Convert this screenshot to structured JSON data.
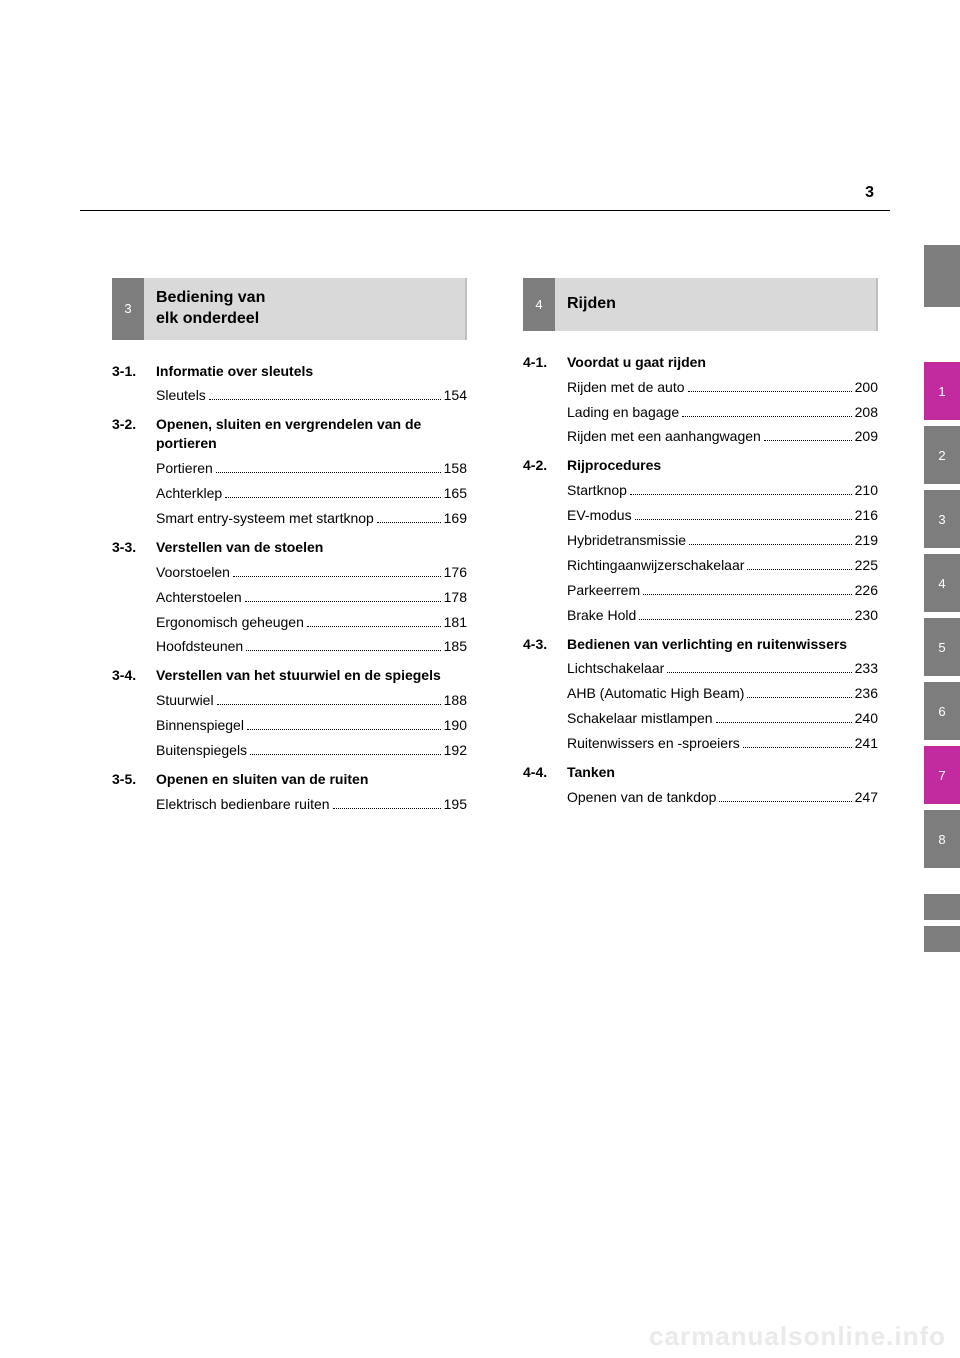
{
  "page_number": "3",
  "watermark": "carmanualsonline.info",
  "tab_colors": {
    "gray": "#7d7d7d",
    "magenta": "#c22aa0"
  },
  "left_section": {
    "number": "3",
    "title_line1": "Bediening van",
    "title_line2": "elk onderdeel",
    "groups": [
      {
        "num": "3-1.",
        "title": "Informatie over sleutels",
        "entries": [
          {
            "label": "Sleutels",
            "page": "154"
          }
        ]
      },
      {
        "num": "3-2.",
        "title": "Openen, sluiten en vergrendelen van de portieren",
        "entries": [
          {
            "label": "Portieren",
            "page": "158"
          },
          {
            "label": "Achterklep",
            "page": "165"
          },
          {
            "label": "Smart entry-systeem met startknop",
            "page": "169"
          }
        ]
      },
      {
        "num": "3-3.",
        "title": "Verstellen van de stoelen",
        "entries": [
          {
            "label": "Voorstoelen",
            "page": "176"
          },
          {
            "label": "Achterstoelen",
            "page": "178"
          },
          {
            "label": "Ergonomisch geheugen",
            "page": "181"
          },
          {
            "label": "Hoofdsteunen",
            "page": "185"
          }
        ]
      },
      {
        "num": "3-4.",
        "title": "Verstellen van het stuurwiel en de spiegels",
        "entries": [
          {
            "label": "Stuurwiel",
            "page": "188"
          },
          {
            "label": "Binnenspiegel",
            "page": "190"
          },
          {
            "label": "Buitenspiegels",
            "page": "192"
          }
        ]
      },
      {
        "num": "3-5.",
        "title": "Openen en sluiten van de ruiten",
        "entries": [
          {
            "label": "Elektrisch bedienbare ruiten",
            "page": "195"
          }
        ]
      }
    ]
  },
  "right_section": {
    "number": "4",
    "title": "Rijden",
    "groups": [
      {
        "num": "4-1.",
        "title": "Voordat u gaat rijden",
        "entries": [
          {
            "label": "Rijden met de auto",
            "page": "200"
          },
          {
            "label": "Lading en bagage",
            "page": "208"
          },
          {
            "label": "Rijden met een aanhangwagen",
            "page": "209"
          }
        ]
      },
      {
        "num": "4-2.",
        "title": "Rijprocedures",
        "entries": [
          {
            "label": "Startknop",
            "page": "210"
          },
          {
            "label": "EV-modus",
            "page": "216"
          },
          {
            "label": "Hybridetransmissie",
            "page": "219"
          },
          {
            "label": "Richtingaanwijzerschakelaar",
            "page": "225"
          },
          {
            "label": "Parkeerrem",
            "page": "226"
          },
          {
            "label": "Brake Hold",
            "page": "230"
          }
        ]
      },
      {
        "num": "4-3.",
        "title": "Bedienen van verlichting en ruitenwissers",
        "entries": [
          {
            "label": "Lichtschakelaar",
            "page": "233"
          },
          {
            "label": "AHB (Automatic High Beam)",
            "page": "236"
          },
          {
            "label": "Schakelaar mistlampen",
            "page": "240"
          },
          {
            "label": "Ruitenwissers en -sproeiers",
            "page": "241"
          }
        ]
      },
      {
        "num": "4-4.",
        "title": "Tanken",
        "entries": [
          {
            "label": "Openen van de tankdop",
            "page": "247"
          }
        ]
      }
    ]
  },
  "side_tabs": [
    {
      "label": "1",
      "color": "#c22aa0"
    },
    {
      "label": "2",
      "color": "#7d7d7d"
    },
    {
      "label": "3",
      "color": "#7d7d7d"
    },
    {
      "label": "4",
      "color": "#7d7d7d"
    },
    {
      "label": "5",
      "color": "#7d7d7d"
    },
    {
      "label": "6",
      "color": "#7d7d7d"
    },
    {
      "label": "7",
      "color": "#c22aa0"
    },
    {
      "label": "8",
      "color": "#7d7d7d"
    }
  ]
}
